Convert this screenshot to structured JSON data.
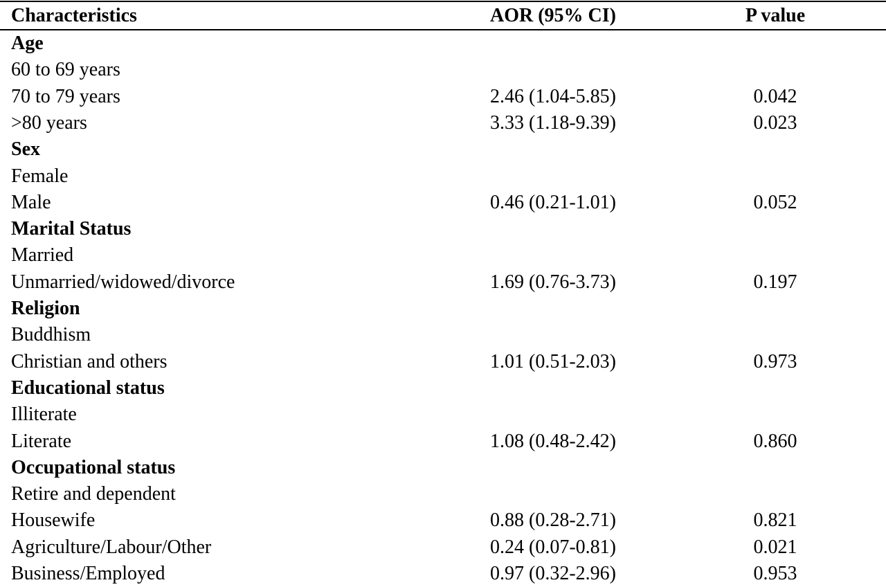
{
  "table": {
    "headers": {
      "characteristics": "Characteristics",
      "aor": "AOR (95% CI)",
      "p_value": "P value"
    },
    "rows": [
      {
        "type": "group",
        "label": "Age",
        "aor": "",
        "p": ""
      },
      {
        "type": "item",
        "label": "60 to 69 years",
        "aor": "",
        "p": ""
      },
      {
        "type": "item",
        "label": "70 to 79 years",
        "aor": "2.46 (1.04-5.85)",
        "p": "0.042"
      },
      {
        "type": "item",
        "label": ">80 years",
        "aor": "3.33 (1.18-9.39)",
        "p": "0.023"
      },
      {
        "type": "group",
        "label": "Sex",
        "aor": "",
        "p": ""
      },
      {
        "type": "item",
        "label": "Female",
        "aor": "",
        "p": ""
      },
      {
        "type": "item",
        "label": "Male",
        "aor": "0.46 (0.21-1.01)",
        "p": "0.052"
      },
      {
        "type": "group",
        "label": "Marital Status",
        "aor": "",
        "p": ""
      },
      {
        "type": "item",
        "label": "Married",
        "aor": "",
        "p": ""
      },
      {
        "type": "item",
        "label": "Unmarried/widowed/divorce",
        "aor": "1.69 (0.76-3.73)",
        "p": "0.197"
      },
      {
        "type": "group",
        "label": "Religion",
        "aor": "",
        "p": ""
      },
      {
        "type": "item",
        "label": "Buddhism",
        "aor": "",
        "p": ""
      },
      {
        "type": "item",
        "label": "Christian and others",
        "aor": "1.01 (0.51-2.03)",
        "p": "0.973"
      },
      {
        "type": "group",
        "label": "Educational status",
        "aor": "",
        "p": ""
      },
      {
        "type": "item",
        "label": "Illiterate",
        "aor": "",
        "p": ""
      },
      {
        "type": "item",
        "label": "Literate",
        "aor": "1.08 (0.48-2.42)",
        "p": "0.860"
      },
      {
        "type": "group",
        "label": "Occupational status",
        "aor": "",
        "p": ""
      },
      {
        "type": "item",
        "label": "Retire and dependent",
        "aor": "",
        "p": ""
      },
      {
        "type": "item",
        "label": "Housewife",
        "aor": "0.88 (0.28-2.71)",
        "p": "0.821"
      },
      {
        "type": "item",
        "label": "Agriculture/Labour/Other",
        "aor": "0.24 (0.07-0.81)",
        "p": "0.021"
      },
      {
        "type": "item",
        "label": "Business/Employed",
        "aor": "0.97 (0.32-2.96)",
        "p": "0.953"
      }
    ]
  }
}
